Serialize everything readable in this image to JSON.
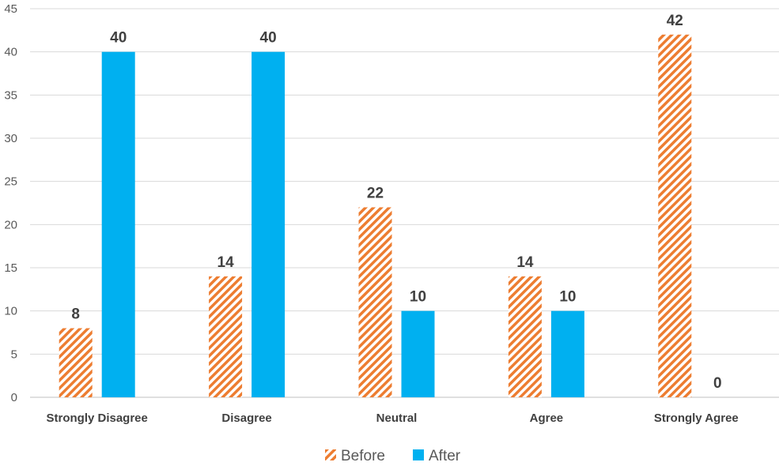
{
  "chart_data": {
    "type": "bar",
    "categories": [
      "Strongly Disagree",
      "Disagree",
      "Neutral",
      "Agree",
      "Strongly Agree"
    ],
    "series": [
      {
        "name": "Before",
        "values": [
          8,
          14,
          22,
          14,
          42
        ],
        "color": "#ED7D31",
        "pattern": "diagonal-hatch"
      },
      {
        "name": "After",
        "values": [
          40,
          40,
          10,
          10,
          0
        ],
        "color": "#00B0F0",
        "pattern": "solid"
      }
    ],
    "ylim": [
      0,
      45
    ],
    "yticks": [
      0,
      5,
      10,
      15,
      20,
      25,
      30,
      35,
      40,
      45
    ],
    "grid": true,
    "legend": "bottom",
    "data_labels": true
  }
}
